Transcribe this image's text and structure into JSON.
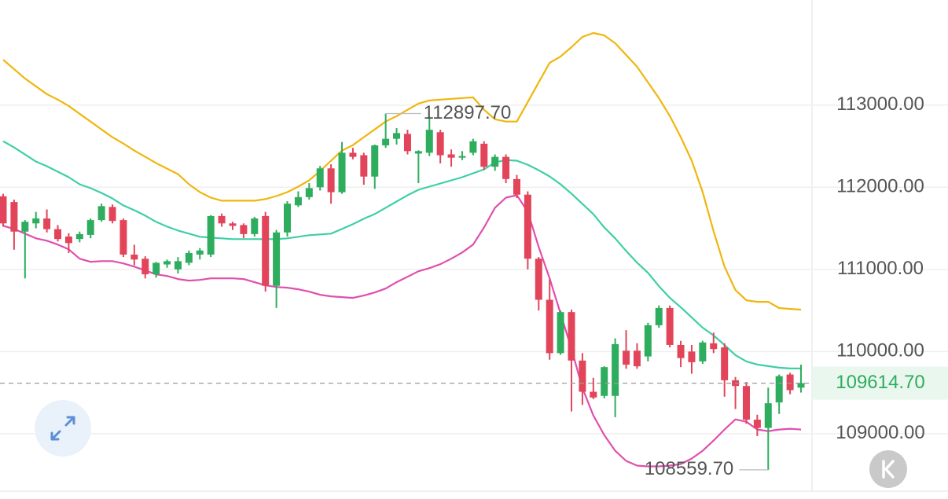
{
  "chart_data": {
    "type": "candlestick",
    "ylim": [
      108300,
      114280
    ],
    "yticks": [
      {
        "value": 109000,
        "label": "109000.00"
      },
      {
        "value": 110000,
        "label": "110000.00"
      },
      {
        "value": 111000,
        "label": "111000.00"
      },
      {
        "value": 112000,
        "label": "112000.00"
      },
      {
        "value": 113000,
        "label": "113000.00"
      }
    ],
    "grid": true,
    "up_color": "#2ead5e",
    "down_color": "#e2455a",
    "open": [
      111890,
      111820,
      111460,
      111560,
      111620,
      111490,
      111400,
      111370,
      111420,
      111600,
      111760,
      111600,
      111180,
      111130,
      110940,
      111060,
      111000,
      111080,
      111180,
      111180,
      111650,
      111560,
      111540,
      111430,
      111650,
      110800,
      111450,
      111780,
      111880,
      112000,
      112230,
      111940,
      112420,
      112390,
      112130,
      112510,
      112590,
      112650,
      112410,
      112420,
      112670,
      112400,
      112360,
      112420,
      112530,
      112250,
      112370,
      112100,
      111910,
      111130,
      110630,
      109980,
      110480,
      109890,
      109510,
      109460,
      109460,
      110010,
      110010,
      109940,
      110320,
      110530,
      110080,
      110000,
      109880,
      110100,
      110050,
      109650,
      109580,
      109170,
      109070,
      109380,
      109720,
      109560
    ],
    "high": [
      111920,
      111850,
      111600,
      111700,
      111730,
      111540,
      111440,
      111460,
      111620,
      111800,
      111790,
      111620,
      111300,
      111160,
      111090,
      111120,
      111150,
      111230,
      111260,
      111660,
      111680,
      111580,
      111560,
      111640,
      111700,
      111480,
      111830,
      111950,
      112050,
      112260,
      112280,
      112550,
      112480,
      112420,
      112520,
      112897.7,
      112720,
      112700,
      112450,
      112860,
      112700,
      112460,
      112440,
      112590,
      112560,
      112400,
      112400,
      112150,
      111950,
      111150,
      110880,
      110500,
      110510,
      109980,
      109680,
      109820,
      110160,
      110260,
      110100,
      110350,
      110560,
      110560,
      110130,
      110080,
      110130,
      110230,
      110100,
      109690,
      109630,
      109230,
      109560,
      109720,
      109740,
      109840
    ],
    "low": [
      111520,
      111240,
      110890,
      111500,
      111450,
      111340,
      111200,
      111330,
      111380,
      111580,
      111560,
      111150,
      111050,
      110890,
      110900,
      111020,
      110950,
      111050,
      111120,
      111150,
      111520,
      111480,
      111380,
      111400,
      110730,
      110530,
      111400,
      111760,
      111850,
      111960,
      111800,
      111920,
      112340,
      112030,
      111980,
      112480,
      112520,
      112400,
      112050,
      112380,
      112290,
      112250,
      112330,
      112390,
      112210,
      112200,
      112050,
      111870,
      111000,
      110500,
      109900,
      109960,
      109270,
      109350,
      109420,
      109430,
      109200,
      109790,
      109790,
      109880,
      110290,
      110050,
      109810,
      109730,
      109850,
      109980,
      109450,
      109300,
      109120,
      108970,
      108559.7,
      109240,
      109480,
      109500
    ],
    "close": [
      111560,
      111460,
      111580,
      111620,
      111490,
      111370,
      111320,
      111430,
      111600,
      111770,
      111590,
      111180,
      111120,
      110940,
      111080,
      111100,
      111100,
      111200,
      111230,
      111650,
      111560,
      111530,
      111430,
      111620,
      110800,
      111450,
      111800,
      111880,
      111990,
      112230,
      111940,
      112420,
      112370,
      112130,
      112510,
      112590,
      112660,
      112440,
      112440,
      112700,
      112390,
      112360,
      112380,
      112560,
      112250,
      112370,
      112100,
      111910,
      111130,
      110630,
      109980,
      110480,
      109890,
      109510,
      109440,
      109810,
      110090,
      109840,
      109820,
      110320,
      110530,
      110080,
      109920,
      109870,
      110110,
      110030,
      109650,
      109580,
      109170,
      109070,
      109370,
      109700,
      109530,
      109614.7
    ],
    "bands": [
      {
        "color": "#f0b60e",
        "values": [
          113553,
          113439,
          113324,
          113229,
          113134,
          113067,
          112990,
          112895,
          112800,
          112704,
          112609,
          112532,
          112447,
          112370,
          112294,
          112227,
          112160,
          112036,
          111941,
          111874,
          111836,
          111836,
          111836,
          111836,
          111855,
          111893,
          111941,
          112008,
          112084,
          112198,
          112323,
          112447,
          112513,
          112609,
          112704,
          112800,
          112866,
          112943,
          113019,
          113057,
          113067,
          113076,
          113086,
          113095,
          112943,
          112828,
          112800,
          112800,
          113038,
          113277,
          113515,
          113592,
          113706,
          113830,
          113878,
          113849,
          113754,
          113611,
          113468,
          113277,
          113086,
          112866,
          112609,
          112323,
          111941,
          111464,
          111034,
          110748,
          110624,
          110605,
          110605,
          110529,
          110519,
          110510
        ]
      },
      {
        "color": "#3dcfa6",
        "values": [
          112561,
          112485,
          112399,
          112313,
          112256,
          112189,
          112122,
          112036,
          111989,
          111931,
          111864,
          111779,
          111721,
          111655,
          111578,
          111521,
          111473,
          111435,
          111397,
          111387,
          111378,
          111368,
          111368,
          111368,
          111368,
          111368,
          111378,
          111397,
          111416,
          111426,
          111435,
          111492,
          111550,
          111616,
          111674,
          111750,
          111826,
          111903,
          111969,
          112008,
          112046,
          112084,
          112122,
          112170,
          112218,
          112303,
          112332,
          112323,
          112275,
          112208,
          112132,
          112036,
          111922,
          111798,
          111674,
          111511,
          111378,
          111225,
          111082,
          110958,
          110796,
          110653,
          110538,
          110414,
          110290,
          110195,
          110080,
          109956,
          109880,
          109841,
          109822,
          109803,
          109794,
          109794
        ]
      },
      {
        "color": "#e04fae",
        "values": [
          111531,
          111492,
          111435,
          111378,
          111349,
          111302,
          111244,
          111130,
          111092,
          111101,
          111101,
          111073,
          111034,
          110987,
          110939,
          110920,
          110882,
          110863,
          110872,
          110891,
          110891,
          110891,
          110882,
          110844,
          110805,
          110786,
          110777,
          110758,
          110729,
          110691,
          110672,
          110662,
          110653,
          110681,
          110719,
          110767,
          110844,
          110910,
          110977,
          111015,
          111063,
          111130,
          111206,
          111302,
          111511,
          111750,
          111874,
          111903,
          111702,
          111273,
          110891,
          110462,
          110033,
          109556,
          109221,
          108983,
          108792,
          108668,
          108611,
          108601,
          108601,
          108611,
          108630,
          108697,
          108792,
          108916,
          109050,
          109174,
          109145,
          109050,
          109031,
          109050,
          109060,
          109050
        ]
      }
    ],
    "max_label": {
      "value": 112897.7,
      "label": "112897.70"
    },
    "min_label": {
      "value": 108559.7,
      "label": "108559.70"
    },
    "last_price": {
      "value": 109614.7,
      "label": "109614.70"
    }
  }
}
